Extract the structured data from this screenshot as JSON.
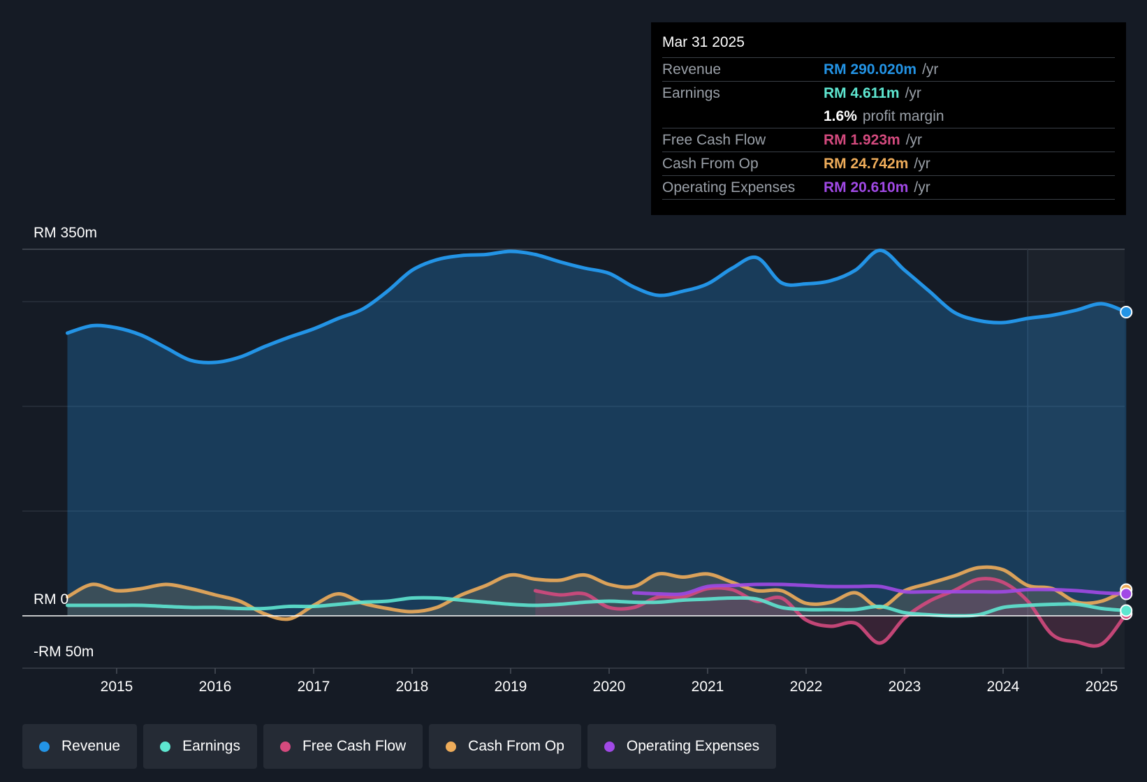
{
  "tooltip": {
    "date": "Mar 31 2025",
    "rows": {
      "revenue": {
        "label": "Revenue",
        "value": "RM 290.020m",
        "unit": "/yr",
        "color": "#2394e6"
      },
      "earnings": {
        "label": "Earnings",
        "value": "RM 4.611m",
        "unit": "/yr",
        "color": "#5ee6d0"
      },
      "margin": {
        "value": "1.6%",
        "text": "profit margin"
      },
      "fcf": {
        "label": "Free Cash Flow",
        "value": "RM 1.923m",
        "unit": "/yr",
        "color": "#d44a7e"
      },
      "cfo": {
        "label": "Cash From Op",
        "value": "RM 24.742m",
        "unit": "/yr",
        "color": "#eeac5a"
      },
      "opex": {
        "label": "Operating Expenses",
        "value": "RM 20.610m",
        "unit": "/yr",
        "color": "#a149e6"
      }
    }
  },
  "legend": {
    "revenue": "Revenue",
    "earnings": "Earnings",
    "fcf": "Free Cash Flow",
    "cfo": "Cash From Op",
    "opex": "Operating Expenses"
  },
  "chart_data": {
    "type": "line",
    "y_labels": {
      "top": "RM 350m",
      "zero": "RM 0",
      "bottom": "-RM 50m"
    },
    "ylim": [
      -50,
      350
    ],
    "xlim": [
      2014.0,
      2025.25
    ],
    "x_ticks": [
      2015,
      2016,
      2017,
      2018,
      2019,
      2020,
      2021,
      2022,
      2023,
      2024,
      2025
    ],
    "x_tick_labels": [
      "2015",
      "2016",
      "2017",
      "2018",
      "2019",
      "2020",
      "2021",
      "2022",
      "2023",
      "2024",
      "2025"
    ],
    "forecast_start": 2024.25,
    "series": [
      {
        "name": "Revenue",
        "key": "revenue",
        "color": "#2394e6",
        "fill": true,
        "x": [
          2014.5,
          2014.75,
          2015.0,
          2015.25,
          2015.5,
          2015.75,
          2016.0,
          2016.25,
          2016.5,
          2016.75,
          2017.0,
          2017.25,
          2017.5,
          2017.75,
          2018.0,
          2018.25,
          2018.5,
          2018.75,
          2019.0,
          2019.25,
          2019.5,
          2019.75,
          2020.0,
          2020.25,
          2020.5,
          2020.75,
          2021.0,
          2021.25,
          2021.5,
          2021.75,
          2022.0,
          2022.25,
          2022.5,
          2022.75,
          2023.0,
          2023.25,
          2023.5,
          2023.75,
          2024.0,
          2024.25,
          2024.5,
          2024.75,
          2025.0,
          2025.25
        ],
        "y": [
          270,
          277,
          275,
          268,
          256,
          244,
          242,
          247,
          257,
          266,
          274,
          284,
          293,
          310,
          330,
          340,
          344,
          345,
          348,
          345,
          338,
          332,
          327,
          314,
          306,
          310,
          317,
          332,
          342,
          318,
          317,
          320,
          330,
          349,
          330,
          310,
          290,
          282,
          280,
          284,
          287,
          292,
          298,
          290
        ]
      },
      {
        "name": "Earnings",
        "key": "earnings",
        "color": "#5ee6d0",
        "fill": false,
        "x": [
          2014.5,
          2014.75,
          2015.0,
          2015.25,
          2015.5,
          2015.75,
          2016.0,
          2016.25,
          2016.5,
          2016.75,
          2017.0,
          2017.25,
          2017.5,
          2017.75,
          2018.0,
          2018.25,
          2018.5,
          2018.75,
          2019.0,
          2019.25,
          2019.5,
          2019.75,
          2020.0,
          2020.25,
          2020.5,
          2020.75,
          2021.0,
          2021.25,
          2021.5,
          2021.75,
          2022.0,
          2022.25,
          2022.5,
          2022.75,
          2023.0,
          2023.25,
          2023.5,
          2023.75,
          2024.0,
          2024.25,
          2024.5,
          2024.75,
          2025.0,
          2025.25
        ],
        "y": [
          10,
          10,
          10,
          10,
          9,
          8,
          8,
          7,
          7,
          9,
          9,
          11,
          13,
          14,
          17,
          17,
          15,
          13,
          11,
          10,
          11,
          13,
          14,
          13,
          13,
          15,
          16,
          17,
          16,
          8,
          6,
          6,
          6,
          9,
          3,
          1,
          0,
          1,
          8,
          10,
          11,
          11,
          7,
          5
        ]
      },
      {
        "name": "Free Cash Flow",
        "key": "fcf",
        "color": "#d44a7e",
        "fill": true,
        "x": [
          2019.25,
          2019.5,
          2019.75,
          2020.0,
          2020.25,
          2020.5,
          2020.75,
          2021.0,
          2021.25,
          2021.5,
          2021.75,
          2022.0,
          2022.25,
          2022.5,
          2022.75,
          2023.0,
          2023.25,
          2023.5,
          2023.75,
          2024.0,
          2024.25,
          2024.5,
          2024.75,
          2025.0,
          2025.25
        ],
        "y": [
          24,
          20,
          21,
          8,
          8,
          18,
          18,
          26,
          25,
          14,
          17,
          -4,
          -10,
          -7,
          -26,
          -2,
          14,
          24,
          35,
          32,
          14,
          -18,
          -25,
          -27,
          2
        ]
      },
      {
        "name": "Cash From Op",
        "key": "cfo",
        "color": "#eeac5a",
        "fill": true,
        "x": [
          2014.5,
          2014.75,
          2015.0,
          2015.25,
          2015.5,
          2015.75,
          2016.0,
          2016.25,
          2016.5,
          2016.75,
          2017.0,
          2017.25,
          2017.5,
          2017.75,
          2018.0,
          2018.25,
          2018.5,
          2018.75,
          2019.0,
          2019.25,
          2019.5,
          2019.75,
          2020.0,
          2020.25,
          2020.5,
          2020.75,
          2021.0,
          2021.25,
          2021.5,
          2021.75,
          2022.0,
          2022.25,
          2022.5,
          2022.75,
          2023.0,
          2023.25,
          2023.5,
          2023.75,
          2024.0,
          2024.25,
          2024.5,
          2024.75,
          2025.0,
          2025.25
        ],
        "y": [
          18,
          30,
          24,
          26,
          30,
          26,
          20,
          14,
          2,
          -3,
          10,
          21,
          12,
          7,
          4,
          8,
          20,
          29,
          39,
          35,
          34,
          39,
          30,
          28,
          40,
          37,
          40,
          32,
          24,
          24,
          12,
          13,
          22,
          8,
          24,
          31,
          38,
          46,
          44,
          29,
          26,
          13,
          14,
          25
        ]
      },
      {
        "name": "Operating Expenses",
        "key": "opex",
        "color": "#a149e6",
        "fill": false,
        "x": [
          2020.25,
          2020.5,
          2020.75,
          2021.0,
          2021.25,
          2021.5,
          2021.75,
          2022.0,
          2022.25,
          2022.5,
          2022.75,
          2023.0,
          2023.25,
          2023.5,
          2023.75,
          2024.0,
          2024.25,
          2024.5,
          2024.75,
          2025.0,
          2025.25
        ],
        "y": [
          22,
          21,
          21,
          28,
          29,
          30,
          30,
          29,
          28,
          28,
          28,
          23,
          23,
          23,
          23,
          23,
          25,
          25,
          24,
          22,
          21
        ]
      }
    ]
  }
}
